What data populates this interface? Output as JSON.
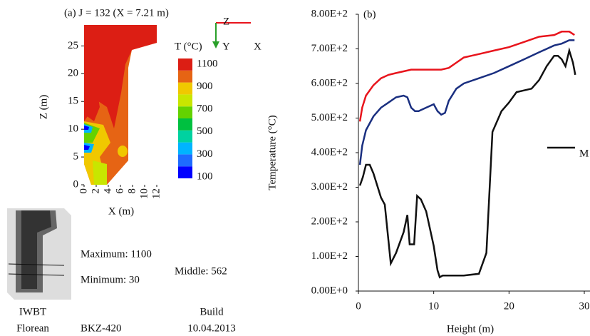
{
  "chart_data": [
    {
      "type": "contour",
      "title": "(a) J = 132 (X = 7.21 m)",
      "x_label": "X (m)",
      "y_label": "Z (m)",
      "xlim": [
        0,
        12
      ],
      "ylim": [
        0,
        28
      ],
      "xticks": [
        0,
        2,
        4,
        6,
        8,
        10,
        12
      ],
      "yticks": [
        0,
        5,
        10,
        15,
        20,
        25
      ],
      "colorbar": {
        "title": "T (°C)",
        "ticks": [
          100,
          300,
          500,
          700,
          900,
          1100
        ],
        "colors": [
          "#0000ff",
          "#1e6bff",
          "#00b4ff",
          "#00d2a0",
          "#00c040",
          "#64d200",
          "#c8e600",
          "#f0c800",
          "#e66414",
          "#dc1e14"
        ]
      },
      "axes_labels": [
        "Z",
        "Y",
        "X"
      ]
    },
    {
      "type": "line",
      "title": "(b)",
      "x_label": "Height (m)",
      "y_label": "Temperature (°C)",
      "xlim": [
        0,
        30
      ],
      "ylim": [
        0,
        800
      ],
      "xticks": [
        0,
        10,
        20,
        30
      ],
      "yticks": [
        {
          "value": 0,
          "label": "0.00E+0"
        },
        {
          "value": 100,
          "label": "1.00E+2"
        },
        {
          "value": 200,
          "label": "2.00E+2"
        },
        {
          "value": 300,
          "label": "3.00E+2"
        },
        {
          "value": 400,
          "label": "4.00E+2"
        },
        {
          "value": 500,
          "label": "5.00E+2"
        },
        {
          "value": 600,
          "label": "6.00E+2"
        },
        {
          "value": 700,
          "label": "7.00E+2"
        },
        {
          "value": 800,
          "label": "8.00E+2"
        }
      ],
      "series": [
        {
          "color": "#e8141c",
          "x": [
            0.2,
            0.5,
            1,
            2,
            3,
            4,
            5,
            6,
            7,
            8,
            9,
            10,
            11,
            12,
            13,
            14,
            15,
            16,
            18,
            20,
            22,
            24,
            26,
            27,
            28,
            28.7
          ],
          "values": [
            490,
            530,
            565,
            595,
            615,
            625,
            630,
            635,
            640,
            640,
            640,
            640,
            640,
            645,
            660,
            675,
            680,
            685,
            695,
            705,
            720,
            735,
            740,
            750,
            750,
            740
          ]
        },
        {
          "color": "#1a2f80",
          "x": [
            0.2,
            0.5,
            1,
            2,
            3,
            4,
            5,
            6,
            6.5,
            7,
            7.5,
            8,
            9,
            10,
            10.5,
            11,
            11.5,
            12,
            13,
            14,
            16,
            18,
            20,
            22,
            24,
            26,
            27,
            28,
            28.7
          ],
          "values": [
            365,
            420,
            465,
            505,
            530,
            545,
            560,
            565,
            560,
            530,
            520,
            520,
            530,
            540,
            520,
            510,
            515,
            550,
            585,
            600,
            615,
            630,
            650,
            670,
            690,
            710,
            715,
            725,
            725
          ]
        },
        {
          "name": "M",
          "color": "#111111",
          "x": [
            0.2,
            0.6,
            1,
            1.5,
            2,
            3,
            3.5,
            4.3,
            5,
            6,
            6.5,
            6.8,
            7.4,
            7.8,
            8.3,
            9,
            10,
            10.5,
            10.8,
            11.2,
            12,
            14,
            16,
            17,
            17.8,
            19,
            20,
            21,
            22,
            23,
            24,
            25,
            26,
            26.5,
            27,
            27.5,
            28,
            28.5,
            28.8
          ],
          "values": [
            305,
            330,
            365,
            365,
            340,
            270,
            250,
            80,
            110,
            170,
            220,
            135,
            135,
            275,
            265,
            230,
            130,
            60,
            40,
            45,
            45,
            45,
            50,
            110,
            460,
            520,
            545,
            575,
            580,
            585,
            610,
            650,
            680,
            680,
            670,
            650,
            695,
            660,
            625
          ]
        }
      ]
    }
  ],
  "info": {
    "maximum": "Maximum: 1100",
    "minimum": "Minimum: 30",
    "middle": "Middle: 562",
    "org1": "IWBT",
    "org2": "Florean",
    "boiler": "BKZ-420",
    "build": "Build",
    "date": "10.04.2013"
  }
}
